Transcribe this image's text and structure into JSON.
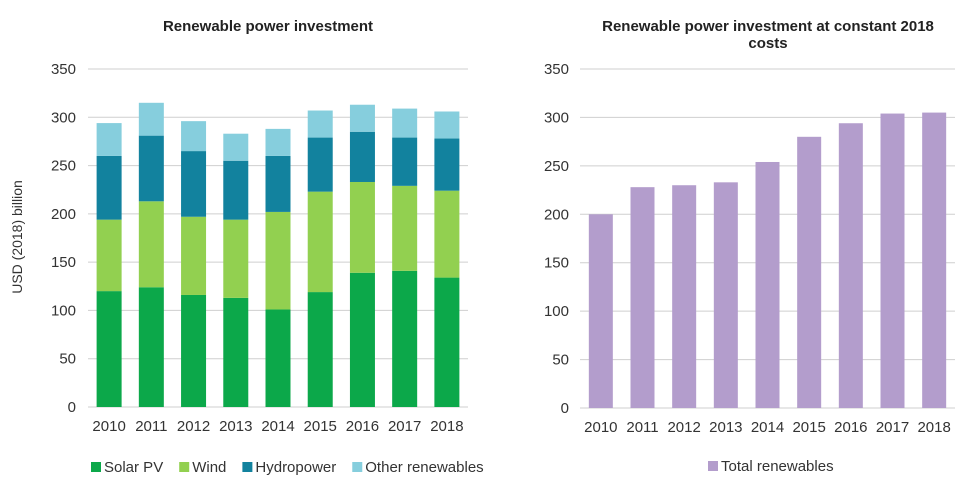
{
  "chart_data": [
    {
      "type": "bar",
      "stacked": true,
      "title": "Renewable power investment",
      "ylabel": "USD (2018) billion",
      "xlabel": "",
      "ylim": [
        0,
        350
      ],
      "yticks": [
        "0",
        "50",
        "100",
        "150",
        "200",
        "250",
        "300",
        "350"
      ],
      "grid": true,
      "legend_position": "bottom",
      "categories": [
        "2010",
        "2011",
        "2012",
        "2013",
        "2014",
        "2015",
        "2016",
        "2017",
        "2018"
      ],
      "series": [
        {
          "name": "Solar PV",
          "color": "#0ca84a",
          "values": [
            120,
            124,
            116,
            113,
            101,
            119,
            139,
            141,
            134
          ]
        },
        {
          "name": "Wind",
          "color": "#92d050",
          "values": [
            74,
            89,
            81,
            81,
            101,
            104,
            94,
            88,
            90
          ]
        },
        {
          "name": "Hydropower",
          "color": "#12829e",
          "values": [
            66,
            68,
            68,
            61,
            58,
            56,
            52,
            50,
            54
          ]
        },
        {
          "name": "Other renewables",
          "color": "#86cedd",
          "values": [
            34,
            34,
            31,
            28,
            28,
            28,
            28,
            30,
            28
          ]
        }
      ]
    },
    {
      "type": "bar",
      "title": "Renewable power investment at constant 2018 costs",
      "title_lines": [
        "Renewable power investment at constant 2018",
        "costs"
      ],
      "ylabel": "",
      "xlabel": "",
      "ylim": [
        0,
        350
      ],
      "yticks": [
        "0",
        "50",
        "100",
        "150",
        "200",
        "250",
        "300",
        "350"
      ],
      "grid": true,
      "legend_position": "bottom",
      "categories": [
        "2010",
        "2011",
        "2012",
        "2013",
        "2014",
        "2015",
        "2016",
        "2017",
        "2018"
      ],
      "series": [
        {
          "name": "Total renewables",
          "color": "#b39dcc",
          "values": [
            200,
            228,
            230,
            233,
            254,
            280,
            294,
            304,
            305
          ]
        }
      ]
    }
  ]
}
